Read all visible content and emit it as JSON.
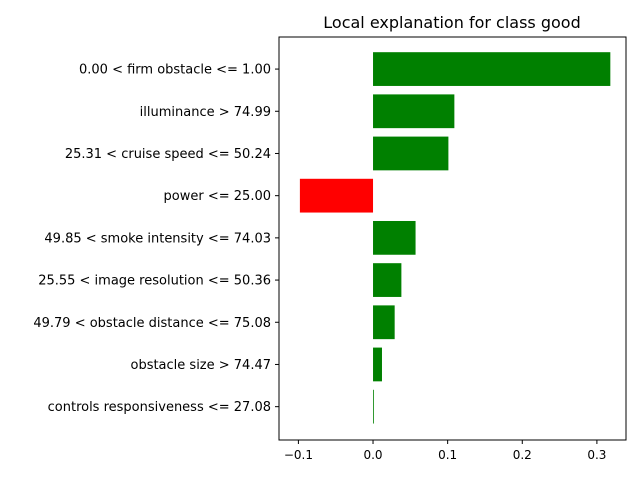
{
  "chart_data": {
    "type": "bar",
    "orientation": "horizontal",
    "title": "Local explanation for class good",
    "xlabel": "",
    "ylabel": "",
    "categories": [
      "0.00 < firm obstacle <= 1.00",
      "illuminance > 74.99",
      "25.31 < cruise speed <= 50.24",
      "power <= 25.00",
      "49.85 < smoke intensity <= 74.03",
      "25.55 < image resolution <= 50.36",
      "49.79 < obstacle distance <= 75.08",
      "obstacle size > 74.47",
      "controls responsiveness <= 27.08"
    ],
    "values": [
      0.318,
      0.109,
      0.101,
      -0.098,
      0.057,
      0.038,
      0.029,
      0.012,
      0.001
    ],
    "xlim": [
      -0.126,
      0.339
    ],
    "xticks": [
      -0.1,
      0.0,
      0.1,
      0.2,
      0.3
    ],
    "xtick_labels": [
      "−0.1",
      "0.0",
      "0.1",
      "0.2",
      "0.3"
    ],
    "grid": false,
    "colors": {
      "positive": "#008000",
      "negative": "#ff0000"
    }
  }
}
